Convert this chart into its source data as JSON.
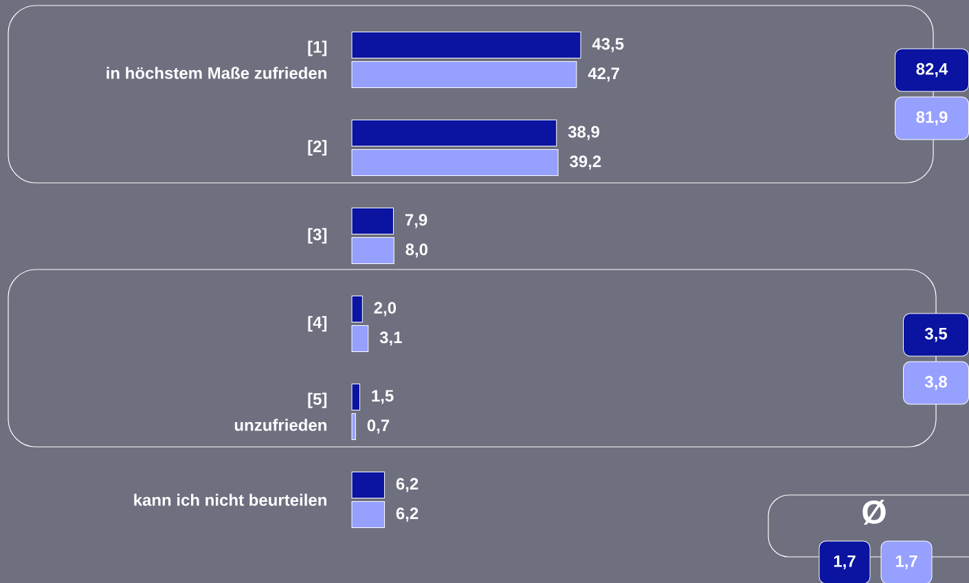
{
  "chart_data": {
    "type": "bar",
    "orientation": "horizontal",
    "categories": [
      "[1]\nin höchstem Maße zufrieden",
      "[2]",
      "[3]",
      "[4]",
      "[5]\nunzufrieden",
      "kann ich nicht beurteilen"
    ],
    "series": [
      {
        "color": "#0a14a0",
        "values": [
          43.5,
          38.9,
          7.9,
          2.0,
          1.5,
          6.2
        ],
        "value_labels": [
          "43,5",
          "38,9",
          "7,9",
          "2,0",
          "1,5",
          "6,2"
        ]
      },
      {
        "color": "#96a0ff",
        "values": [
          42.7,
          39.2,
          8.0,
          3.1,
          0.7,
          6.2
        ],
        "value_labels": [
          "42,7",
          "39,2",
          "8,0",
          "3,1",
          "0,7",
          "6,2"
        ]
      }
    ],
    "annotations": [
      "82,4",
      "81,9",
      "3,5",
      "3,8",
      "Ø",
      "1,7",
      "1,7"
    ]
  }
}
